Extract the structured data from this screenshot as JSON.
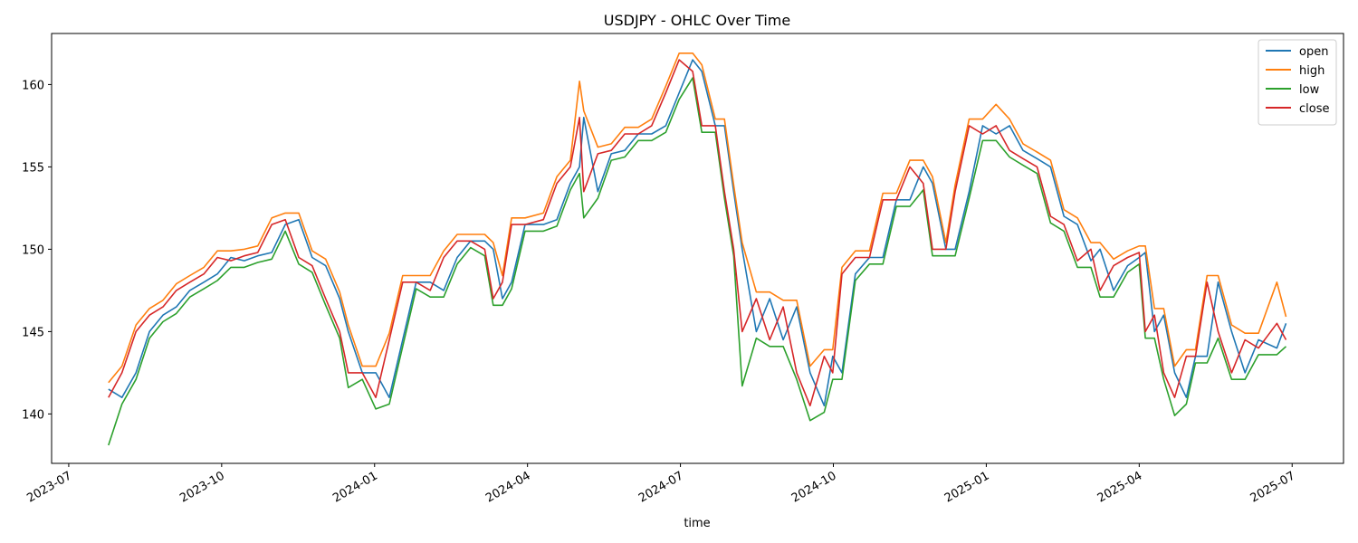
{
  "chart_data": {
    "type": "line",
    "title": "USDJPY - OHLC Over Time",
    "x_label": "time",
    "x": [
      2023.565,
      2023.587,
      2023.61,
      2023.632,
      2023.654,
      2023.676,
      2023.698,
      2023.721,
      2023.743,
      2023.765,
      2023.787,
      2023.809,
      2023.832,
      2023.854,
      2023.876,
      2023.898,
      2023.92,
      2023.943,
      2023.957,
      2023.98,
      2024.002,
      2024.024,
      2024.046,
      2024.068,
      2024.091,
      2024.113,
      2024.135,
      2024.157,
      2024.18,
      2024.194,
      2024.209,
      2024.224,
      2024.246,
      2024.276,
      2024.298,
      2024.32,
      2024.335,
      2024.342,
      2024.365,
      2024.387,
      2024.409,
      2024.431,
      2024.453,
      2024.476,
      2024.498,
      2024.52,
      2024.535,
      2024.557,
      2024.572,
      2024.587,
      2024.601,
      2024.624,
      2024.646,
      2024.668,
      2024.69,
      2024.712,
      2024.735,
      2024.749,
      2024.764,
      2024.786,
      2024.809,
      2024.831,
      2024.853,
      2024.875,
      2024.897,
      2024.912,
      2024.934,
      2024.949,
      2024.972,
      2024.994,
      2025.016,
      2025.038,
      2025.06,
      2025.083,
      2025.105,
      2025.127,
      2025.149,
      2025.171,
      2025.186,
      2025.208,
      2025.231,
      2025.25,
      2025.26,
      2025.275,
      2025.29,
      2025.308,
      2025.327,
      2025.342,
      2025.361,
      2025.379,
      2025.401,
      2025.423,
      2025.445,
      2025.475,
      2025.49
    ],
    "series": [
      {
        "name": "open",
        "color": "#1f77b4",
        "values": [
          141.5,
          141,
          142.5,
          145,
          146,
          146.5,
          147.5,
          148,
          148.5,
          149.5,
          149.3,
          149.6,
          149.8,
          151.5,
          151.8,
          149.5,
          149,
          147,
          145,
          142.5,
          142.5,
          141,
          144.5,
          148,
          148,
          147.5,
          149.5,
          150.5,
          150.5,
          150,
          147,
          148,
          151.5,
          151.5,
          151.8,
          154,
          155,
          158,
          153.5,
          155.8,
          156,
          157,
          157,
          157.5,
          159.5,
          161.5,
          160.8,
          157.5,
          157.5,
          153.5,
          150,
          145,
          147,
          144.5,
          146.5,
          142.5,
          140.5,
          143.5,
          142.5,
          148.5,
          149.5,
          149.5,
          153,
          153,
          155,
          154,
          150,
          150,
          153.5,
          157.5,
          157,
          157.5,
          156,
          155.5,
          155,
          152,
          151.5,
          149.3,
          150,
          147.5,
          149,
          149.5,
          149.8,
          145,
          146,
          142.5,
          141,
          143.5,
          143.5,
          148,
          145,
          142.5,
          144.5,
          144,
          145.5
        ]
      },
      {
        "name": "high",
        "color": "#ff7f0e",
        "values": [
          141.9,
          142.9,
          145.4,
          146.4,
          146.9,
          147.9,
          148.4,
          148.9,
          149.9,
          149.9,
          150.0,
          150.2,
          151.9,
          152.2,
          152.2,
          149.9,
          149.4,
          147.4,
          145.4,
          142.9,
          142.9,
          144.9,
          148.4,
          148.4,
          148.4,
          149.9,
          150.9,
          150.9,
          150.9,
          150.4,
          148.4,
          151.9,
          151.9,
          152.2,
          154.4,
          155.4,
          160.2,
          158.4,
          156.2,
          156.4,
          157.4,
          157.4,
          157.9,
          159.9,
          161.9,
          161.9,
          161.2,
          157.9,
          157.9,
          153.9,
          150.4,
          147.4,
          147.4,
          146.9,
          146.9,
          142.9,
          143.9,
          143.9,
          148.9,
          149.9,
          149.9,
          153.4,
          153.4,
          155.4,
          155.4,
          154.4,
          150.4,
          153.9,
          157.9,
          157.9,
          158.8,
          157.9,
          156.4,
          155.9,
          155.4,
          152.4,
          151.9,
          150.4,
          150.4,
          149.4,
          149.9,
          150.2,
          150.2,
          146.4,
          146.4,
          142.9,
          143.9,
          143.9,
          148.4,
          148.4,
          145.4,
          144.9,
          144.9,
          148.0,
          145.9
        ]
      },
      {
        "name": "low",
        "color": "#2ca02c",
        "values": [
          138.1,
          140.6,
          142.1,
          144.6,
          145.6,
          146.1,
          147.1,
          147.6,
          148.1,
          148.9,
          148.9,
          149.2,
          149.4,
          151.1,
          149.1,
          148.6,
          146.6,
          144.6,
          141.6,
          142.1,
          140.3,
          140.6,
          144.1,
          147.6,
          147.1,
          147.1,
          149.1,
          150.1,
          149.6,
          146.6,
          146.6,
          147.6,
          151.1,
          151.1,
          151.4,
          153.6,
          154.6,
          151.9,
          153.1,
          155.4,
          155.6,
          156.6,
          156.6,
          157.1,
          159.1,
          160.4,
          157.1,
          157.1,
          153.1,
          149.6,
          141.7,
          144.6,
          144.1,
          144.1,
          142.1,
          139.6,
          140.1,
          142.1,
          142.1,
          148.1,
          149.1,
          149.1,
          152.6,
          152.6,
          153.6,
          149.6,
          149.6,
          149.6,
          153.1,
          156.6,
          156.6,
          155.6,
          155.1,
          154.6,
          151.6,
          151.1,
          148.9,
          148.9,
          147.1,
          147.1,
          148.6,
          149.1,
          144.6,
          144.6,
          142.1,
          139.9,
          140.6,
          143.1,
          143.1,
          144.6,
          142.1,
          142.1,
          143.6,
          143.6,
          144.1
        ]
      },
      {
        "name": "close",
        "color": "#d62728",
        "values": [
          141,
          142.5,
          145,
          146,
          146.5,
          147.5,
          148,
          148.5,
          149.5,
          149.3,
          149.6,
          149.8,
          151.5,
          151.8,
          149.5,
          149,
          147,
          145,
          142.5,
          142.5,
          141,
          144.5,
          148,
          148,
          147.5,
          149.5,
          150.5,
          150.5,
          150,
          147,
          148,
          151.5,
          151.5,
          151.8,
          154,
          155,
          158,
          153.5,
          155.8,
          156,
          157,
          157,
          157.5,
          159.5,
          161.5,
          160.8,
          157.5,
          157.5,
          153.5,
          150,
          145,
          147,
          144.5,
          146.5,
          142.5,
          140.5,
          143.5,
          142.5,
          148.5,
          149.5,
          149.5,
          153,
          153,
          155,
          154,
          150,
          150,
          153.5,
          157.5,
          157,
          157.5,
          156,
          155.5,
          155,
          152,
          151.5,
          149.3,
          150,
          147.5,
          149,
          149.5,
          149.8,
          145,
          146,
          142.5,
          141,
          143.5,
          143.5,
          148,
          145,
          142.5,
          144.5,
          144,
          145.5,
          144.5
        ]
      }
    ],
    "xlim": [
      2023.472,
      2025.584
    ],
    "xticks": [
      {
        "value": 2023.5,
        "label": "2023-07"
      },
      {
        "value": 2023.75,
        "label": "2023-10"
      },
      {
        "value": 2024.0,
        "label": "2024-01"
      },
      {
        "value": 2024.25,
        "label": "2024-04"
      },
      {
        "value": 2024.5,
        "label": "2024-07"
      },
      {
        "value": 2024.75,
        "label": "2024-10"
      },
      {
        "value": 2025.0,
        "label": "2025-01"
      },
      {
        "value": 2025.25,
        "label": "2025-04"
      },
      {
        "value": 2025.5,
        "label": "2025-07"
      }
    ],
    "ylim": [
      137.0,
      163.1
    ],
    "yticks": [
      140,
      145,
      150,
      155,
      160
    ],
    "grid": false,
    "legend": "upper right"
  }
}
